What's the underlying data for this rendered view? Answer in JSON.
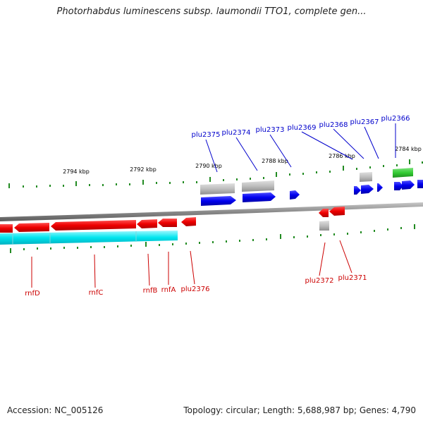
{
  "title": "Photorhabdus luminescens subsp. laumondii TTO1, complete gen...",
  "footer": {
    "accession": "Accession: NC_005126",
    "topology": "Topology: circular; Length: 5,688,987 bp; Genes: 4,790"
  },
  "colors": {
    "forward_cds": "#0000ee",
    "reverse_cds": "#ee0000",
    "gene_bar": "#bbbbbb",
    "highlight_gene": "#33cc33",
    "reverse_strand_band": "#00e5ee",
    "backbone": "#888888",
    "tick": "#228b22",
    "forward_label": "#0000cc",
    "reverse_label": "#cc0000"
  },
  "scale_labels": [
    "2794 kbp",
    "2792 kbp",
    "2790 kbp",
    "2788 kbp",
    "2786 kbp",
    "2784 kbp"
  ],
  "forward_genes": [
    "plu2375",
    "plu2374",
    "plu2373",
    "plu2369",
    "plu2368",
    "plu2367",
    "plu2366"
  ],
  "reverse_genes": [
    "rnfD",
    "rnfC",
    "rnfB",
    "rnfA",
    "plu2376",
    "plu2372",
    "plu2371"
  ]
}
